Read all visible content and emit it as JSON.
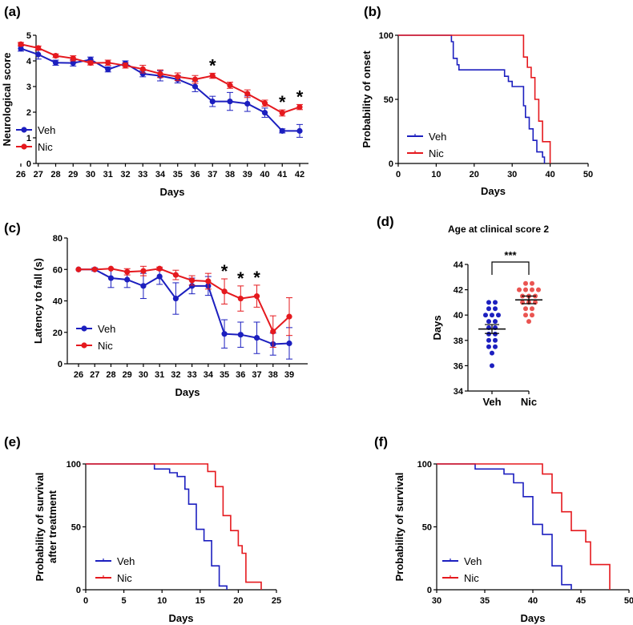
{
  "colors": {
    "veh": "#1c1fbf",
    "nic": "#e5191e",
    "nic_dot": "#ea5451"
  },
  "chart_data": [
    {
      "panel": "(a)",
      "type": "line",
      "xlabel": "Days",
      "ylabel": "Neurological score",
      "categories": [
        "26",
        "27",
        "28",
        "29",
        "30",
        "31",
        "32",
        "33",
        "34",
        "35",
        "36",
        "37",
        "38",
        "39",
        "40",
        "41",
        "42"
      ],
      "ylim": [
        0,
        5
      ],
      "yticks": [
        "0",
        "1",
        "2",
        "3",
        "4",
        "5"
      ],
      "series": [
        {
          "name": "Veh",
          "values": [
            4.48,
            4.25,
            3.93,
            3.92,
            4.05,
            3.67,
            3.9,
            3.5,
            3.42,
            3.28,
            3.0,
            2.42,
            2.42,
            2.33,
            1.98,
            1.27,
            1.27
          ],
          "errors": [
            0.1,
            0.18,
            0.1,
            0.12,
            0.1,
            0.1,
            0.1,
            0.12,
            0.2,
            0.14,
            0.2,
            0.2,
            0.35,
            0.3,
            0.18,
            0.08,
            0.25
          ]
        },
        {
          "name": "Nic",
          "values": [
            4.65,
            4.5,
            4.2,
            4.1,
            3.92,
            3.93,
            3.82,
            3.68,
            3.5,
            3.38,
            3.28,
            3.42,
            3.05,
            2.72,
            2.35,
            1.97,
            2.2
          ],
          "errors": [
            0.07,
            0.08,
            0.07,
            0.1,
            0.08,
            0.1,
            0.1,
            0.15,
            0.15,
            0.15,
            0.15,
            0.1,
            0.12,
            0.15,
            0.12,
            0.12,
            0.1
          ]
        }
      ],
      "stars": [
        {
          "x": "37",
          "label": "*"
        },
        {
          "x": "41",
          "label": "*"
        },
        {
          "x": "42",
          "label": "*"
        }
      ],
      "legend": [
        "Veh",
        "Nic"
      ]
    },
    {
      "panel": "(b)",
      "type": "line",
      "xlabel": "Days",
      "ylabel": "Probability of onset",
      "xlim": [
        0,
        50
      ],
      "xticks": [
        "0",
        "10",
        "20",
        "30",
        "40",
        "50"
      ],
      "ylim": [
        0,
        100
      ],
      "yticks": [
        "0",
        "50",
        "100"
      ],
      "series": [
        {
          "name": "Veh",
          "steps": [
            [
              0,
              100
            ],
            [
              14,
              100
            ],
            [
              14,
              95
            ],
            [
              14.5,
              95
            ],
            [
              14.5,
              82
            ],
            [
              15.5,
              82
            ],
            [
              15.5,
              77
            ],
            [
              16,
              77
            ],
            [
              16,
              73
            ],
            [
              28,
              73
            ],
            [
              28,
              68
            ],
            [
              29,
              68
            ],
            [
              29,
              64
            ],
            [
              30,
              64
            ],
            [
              30,
              60
            ],
            [
              33,
              60
            ],
            [
              33,
              45
            ],
            [
              33.5,
              45
            ],
            [
              33.5,
              36
            ],
            [
              34.5,
              36
            ],
            [
              34.5,
              27
            ],
            [
              35.5,
              27
            ],
            [
              35.5,
              18
            ],
            [
              36.5,
              18
            ],
            [
              36.5,
              9
            ],
            [
              38,
              9
            ],
            [
              38,
              5
            ],
            [
              38.5,
              5
            ],
            [
              38.5,
              0
            ]
          ]
        },
        {
          "name": "Nic",
          "steps": [
            [
              0,
              100
            ],
            [
              33,
              100
            ],
            [
              33,
              83
            ],
            [
              34,
              83
            ],
            [
              34,
              75
            ],
            [
              35,
              75
            ],
            [
              35,
              67
            ],
            [
              36,
              67
            ],
            [
              36,
              50
            ],
            [
              37,
              50
            ],
            [
              37,
              33
            ],
            [
              38,
              33
            ],
            [
              38,
              17
            ],
            [
              40,
              17
            ],
            [
              40,
              0
            ]
          ]
        }
      ],
      "legend": [
        "Veh",
        "Nic"
      ]
    },
    {
      "panel": "(c)",
      "type": "line",
      "xlabel": "Days",
      "ylabel": "Latency to fall (s)",
      "categories": [
        "26",
        "27",
        "28",
        "29",
        "30",
        "31",
        "32",
        "33",
        "34",
        "35",
        "36",
        "37",
        "38",
        "39"
      ],
      "ylim": [
        0,
        80
      ],
      "yticks": [
        "0",
        "20",
        "40",
        "60",
        "80"
      ],
      "series": [
        {
          "name": "Veh",
          "values": [
            60,
            60,
            54.5,
            53.5,
            49.5,
            55.5,
            41.5,
            49.5,
            49.5,
            19,
            18.5,
            16.5,
            12.5,
            13
          ],
          "errors": [
            0,
            1,
            6,
            5,
            8,
            5,
            10,
            5,
            6,
            9,
            8,
            10,
            7,
            10
          ]
        },
        {
          "name": "Nic",
          "values": [
            60,
            60,
            60.5,
            58.5,
            59,
            60.5,
            56.5,
            53,
            52.5,
            46,
            41.5,
            43,
            20.5,
            30
          ],
          "errors": [
            0,
            0,
            0,
            2,
            3,
            1,
            3,
            3,
            5,
            8,
            8,
            7,
            10,
            12
          ]
        }
      ],
      "stars": [
        {
          "x": "35",
          "label": "*"
        },
        {
          "x": "36",
          "label": "*"
        },
        {
          "x": "37",
          "label": "*"
        }
      ],
      "legend": [
        "Veh",
        "Nic"
      ]
    },
    {
      "panel": "(d)",
      "type": "scatter",
      "title": "Age at clinical score 2",
      "ylabel": "Days",
      "categories": [
        "Veh",
        "Nic"
      ],
      "ylim": [
        34,
        44
      ],
      "yticks": [
        "34",
        "36",
        "38",
        "40",
        "42",
        "44"
      ],
      "groups": [
        {
          "name": "Veh",
          "mean": 38.9,
          "sem": 0.35,
          "points": [
            41,
            41,
            40.5,
            40.5,
            40,
            40,
            40,
            39.5,
            39.5,
            39,
            39,
            38.5,
            38.5,
            38,
            38,
            37.5,
            37.5,
            37,
            36
          ]
        },
        {
          "name": "Nic",
          "mean": 41.2,
          "sem": 0.3,
          "points": [
            42.5,
            42.5,
            42,
            42,
            42,
            42,
            41.5,
            41.5,
            41.5,
            41,
            41,
            41,
            40.5,
            40.5,
            40,
            40,
            39.5
          ]
        }
      ],
      "significance": "***"
    },
    {
      "panel": "(e)",
      "type": "line",
      "xlabel": "Days",
      "ylabel": "Probability of survival after treatment",
      "ylabel_lines": [
        "Probability of survival",
        "after treatment"
      ],
      "xlim": [
        0,
        25
      ],
      "xticks": [
        "0",
        "5",
        "10",
        "15",
        "20",
        "25"
      ],
      "ylim": [
        0,
        100
      ],
      "yticks": [
        "0",
        "50",
        "100"
      ],
      "series": [
        {
          "name": "Veh",
          "steps": [
            [
              0,
              100
            ],
            [
              9,
              100
            ],
            [
              9,
              96
            ],
            [
              11,
              96
            ],
            [
              11,
              93
            ],
            [
              12,
              93
            ],
            [
              12,
              90
            ],
            [
              13,
              90
            ],
            [
              13,
              80
            ],
            [
              13.5,
              80
            ],
            [
              13.5,
              68
            ],
            [
              14.5,
              68
            ],
            [
              14.5,
              48
            ],
            [
              15.5,
              48
            ],
            [
              15.5,
              39
            ],
            [
              16.5,
              39
            ],
            [
              16.5,
              19
            ],
            [
              17.5,
              19
            ],
            [
              17.5,
              3
            ],
            [
              18.5,
              3
            ],
            [
              18.5,
              0
            ]
          ]
        },
        {
          "name": "Nic",
          "steps": [
            [
              0,
              100
            ],
            [
              16,
              100
            ],
            [
              16,
              94
            ],
            [
              17,
              94
            ],
            [
              17,
              82
            ],
            [
              18,
              82
            ],
            [
              18,
              59
            ],
            [
              19,
              59
            ],
            [
              19,
              47
            ],
            [
              20,
              47
            ],
            [
              20,
              35
            ],
            [
              20.5,
              35
            ],
            [
              20.5,
              29
            ],
            [
              21,
              29
            ],
            [
              21,
              6
            ],
            [
              23,
              6
            ],
            [
              23,
              0
            ]
          ]
        }
      ],
      "legend": [
        "Veh",
        "Nic"
      ]
    },
    {
      "panel": "(f)",
      "type": "line",
      "xlabel": "Days",
      "ylabel": "Probability of survival",
      "xlim": [
        30,
        50
      ],
      "xticks": [
        "30",
        "35",
        "40",
        "45",
        "50"
      ],
      "ylim": [
        0,
        100
      ],
      "yticks": [
        "0",
        "50",
        "100"
      ],
      "series": [
        {
          "name": "Veh",
          "steps": [
            [
              30,
              100
            ],
            [
              34,
              100
            ],
            [
              34,
              96
            ],
            [
              37,
              96
            ],
            [
              37,
              92
            ],
            [
              38,
              92
            ],
            [
              38,
              85
            ],
            [
              39,
              85
            ],
            [
              39,
              74
            ],
            [
              40,
              74
            ],
            [
              40,
              52
            ],
            [
              41,
              52
            ],
            [
              41,
              44
            ],
            [
              42,
              44
            ],
            [
              42,
              19
            ],
            [
              43,
              19
            ],
            [
              43,
              4
            ],
            [
              44,
              4
            ],
            [
              44,
              0
            ]
          ]
        },
        {
          "name": "Nic",
          "steps": [
            [
              30,
              100
            ],
            [
              41,
              100
            ],
            [
              41,
              92
            ],
            [
              42,
              92
            ],
            [
              42,
              77
            ],
            [
              43,
              77
            ],
            [
              43,
              62
            ],
            [
              44,
              62
            ],
            [
              44,
              47
            ],
            [
              45.5,
              47
            ],
            [
              45.5,
              38
            ],
            [
              46,
              38
            ],
            [
              46,
              20
            ],
            [
              48,
              20
            ],
            [
              48,
              0
            ]
          ]
        }
      ],
      "legend": [
        "Veh",
        "Nic"
      ]
    }
  ]
}
